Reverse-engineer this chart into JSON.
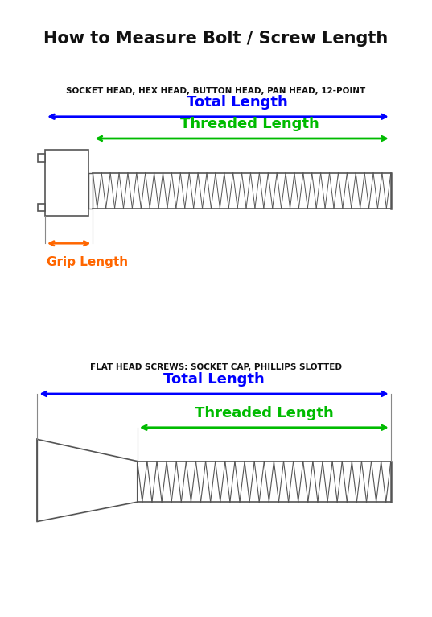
{
  "title": "How to Measure Bolt / Screw Length",
  "title_fontsize": 16,
  "bg_color": "#ffffff",
  "section1_label": "SOCKET HEAD, HEX HEAD, BUTTON HEAD, PAN HEAD, 12-POINT",
  "section2_label": "FLAT HEAD SCREWS: SOCKET CAP, PHILLIPS SLOTTED",
  "total_length_color": "#0000ff",
  "threaded_length_color": "#00bb00",
  "grip_length_color": "#ff6600",
  "bolt_outline_color": "#555555",
  "bolt_fill_color": "#ffffff",
  "thread_color": "#555555"
}
